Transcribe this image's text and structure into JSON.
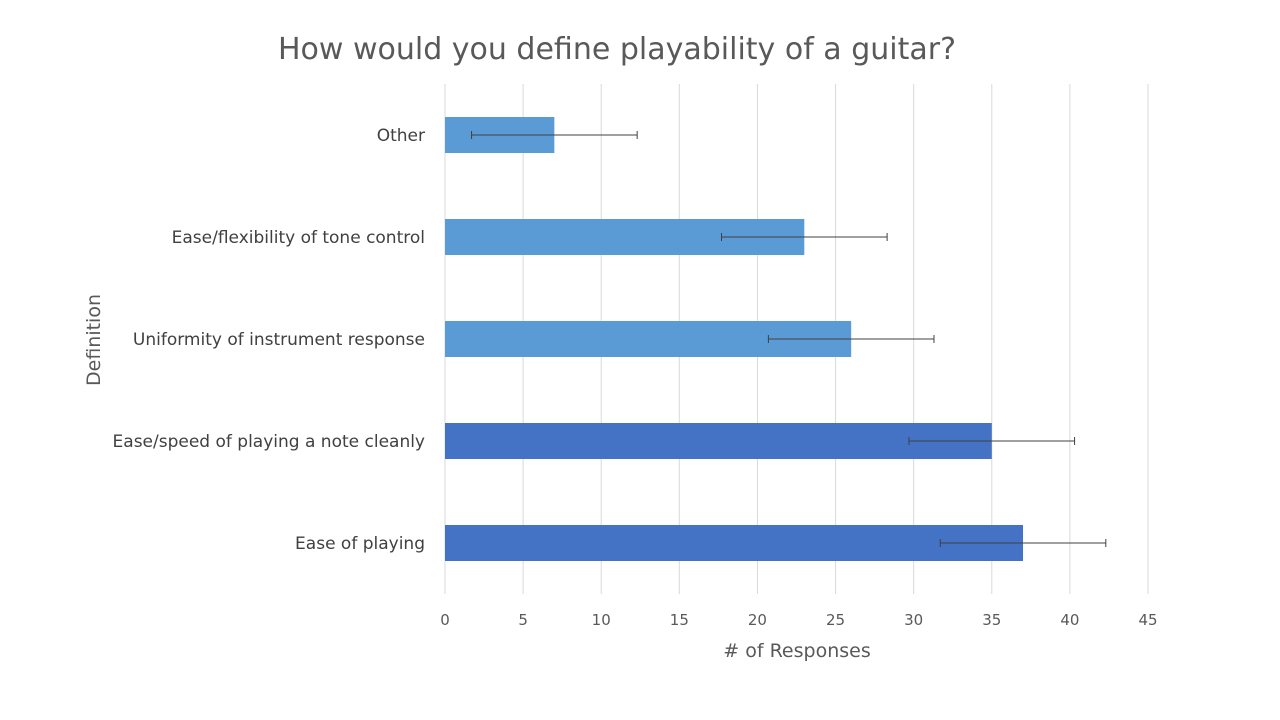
{
  "chart_data": {
    "type": "bar",
    "orientation": "horizontal",
    "title": "How would you define playability of a guitar?",
    "xlabel": "# of Responses",
    "ylabel": "Definition",
    "categories": [
      "Ease of playing",
      "Ease/speed of playing a note cleanly",
      "Uniformity of instrument response",
      "Ease/flexibility of tone control",
      "Other"
    ],
    "values": [
      37,
      35,
      26,
      23,
      7
    ],
    "error_low": [
      31.7,
      29.7,
      20.7,
      17.7,
      1.7
    ],
    "error_high": [
      42.3,
      40.3,
      31.3,
      28.3,
      12.3
    ],
    "bar_colors": [
      "#4472C4",
      "#4472C4",
      "#5B9BD5",
      "#5B9BD5",
      "#5B9BD5"
    ],
    "xlim": [
      0,
      45
    ],
    "xticks": [
      0,
      5,
      10,
      15,
      20,
      25,
      30,
      35,
      40,
      45
    ],
    "grid": true,
    "legend": "none"
  }
}
